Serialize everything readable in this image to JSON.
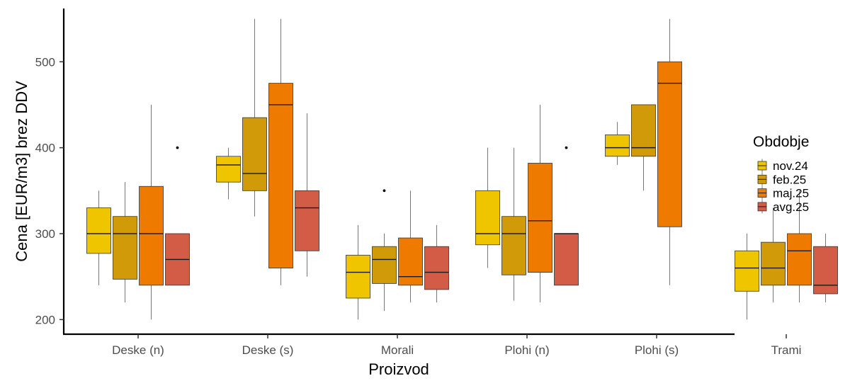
{
  "chart_data": {
    "type": "boxplot",
    "xlabel": "Proizvod",
    "ylabel": "Cena [EUR/m3] brez DDV",
    "ylim": [
      183,
      562
    ],
    "yticks": [
      200,
      300,
      400,
      500
    ],
    "grid": false,
    "legend": {
      "title": "Obdobje",
      "position": "right",
      "entries": [
        {
          "label": "nov.24",
          "color": "#EFC500"
        },
        {
          "label": "feb.25",
          "color": "#D19A08"
        },
        {
          "label": "maj.25",
          "color": "#EF7A00"
        },
        {
          "label": "avg.25",
          "color": "#D25C45"
        }
      ]
    },
    "categories": [
      "Deske (n)",
      "Deske (s)",
      "Morali",
      "Plohi (n)",
      "Plohi (s)",
      "Trami"
    ],
    "series": [
      {
        "name": "nov.24",
        "boxes": [
          {
            "whisker_low": 240,
            "q1": 277,
            "median": 300,
            "q3": 330,
            "whisker_high": 350,
            "outliers": []
          },
          {
            "whisker_low": 340,
            "q1": 360,
            "median": 380,
            "q3": 390,
            "whisker_high": 400,
            "outliers": []
          },
          {
            "whisker_low": 200,
            "q1": 225,
            "median": 255,
            "q3": 275,
            "whisker_high": 310,
            "outliers": []
          },
          {
            "whisker_low": 260,
            "q1": 287,
            "median": 300,
            "q3": 350,
            "whisker_high": 400,
            "outliers": []
          },
          {
            "whisker_low": 380,
            "q1": 390,
            "median": 400,
            "q3": 415,
            "whisker_high": 430,
            "outliers": []
          },
          {
            "whisker_low": 200,
            "q1": 233,
            "median": 260,
            "q3": 280,
            "whisker_high": 300,
            "outliers": []
          }
        ]
      },
      {
        "name": "feb.25",
        "boxes": [
          {
            "whisker_low": 220,
            "q1": 247,
            "median": 300,
            "q3": 320,
            "whisker_high": 360,
            "outliers": []
          },
          {
            "whisker_low": 320,
            "q1": 350,
            "median": 370,
            "q3": 435,
            "whisker_high": 550,
            "outliers": []
          },
          {
            "whisker_low": 210,
            "q1": 242,
            "median": 270,
            "q3": 285,
            "whisker_high": 300,
            "outliers": [
              350
            ]
          },
          {
            "whisker_low": 222,
            "q1": 252,
            "median": 300,
            "q3": 320,
            "whisker_high": 400,
            "outliers": []
          },
          {
            "whisker_low": 350,
            "q1": 390,
            "median": 400,
            "q3": 450,
            "whisker_high": 450,
            "outliers": []
          },
          {
            "whisker_low": 220,
            "q1": 240,
            "median": 260,
            "q3": 290,
            "whisker_high": 330,
            "outliers": []
          }
        ]
      },
      {
        "name": "maj.25",
        "boxes": [
          {
            "whisker_low": 200,
            "q1": 240,
            "median": 300,
            "q3": 355,
            "whisker_high": 450,
            "outliers": []
          },
          {
            "whisker_low": 240,
            "q1": 260,
            "median": 450,
            "q3": 475,
            "whisker_high": 550,
            "outliers": []
          },
          {
            "whisker_low": 220,
            "q1": 240,
            "median": 250,
            "q3": 295,
            "whisker_high": 350,
            "outliers": []
          },
          {
            "whisker_low": 220,
            "q1": 255,
            "median": 315,
            "q3": 382,
            "whisker_high": 450,
            "outliers": []
          },
          {
            "whisker_low": 240,
            "q1": 308,
            "median": 475,
            "q3": 500,
            "whisker_high": 550,
            "outliers": []
          },
          {
            "whisker_low": 220,
            "q1": 240,
            "median": 280,
            "q3": 300,
            "whisker_high": 350,
            "outliers": []
          }
        ]
      },
      {
        "name": "avg.25",
        "boxes": [
          {
            "whisker_low": 240,
            "q1": 240,
            "median": 270,
            "q3": 300,
            "whisker_high": 300,
            "outliers": [
              400
            ]
          },
          {
            "whisker_low": 250,
            "q1": 280,
            "median": 330,
            "q3": 350,
            "whisker_high": 440,
            "outliers": []
          },
          {
            "whisker_low": 220,
            "q1": 235,
            "median": 255,
            "q3": 285,
            "whisker_high": 310,
            "outliers": []
          },
          {
            "whisker_low": 240,
            "q1": 240,
            "median": 300,
            "q3": 300,
            "whisker_high": 300,
            "outliers": [
              400
            ]
          },
          null,
          {
            "whisker_low": 220,
            "q1": 230,
            "median": 240,
            "q3": 285,
            "whisker_high": 300,
            "outliers": []
          }
        ]
      }
    ]
  }
}
